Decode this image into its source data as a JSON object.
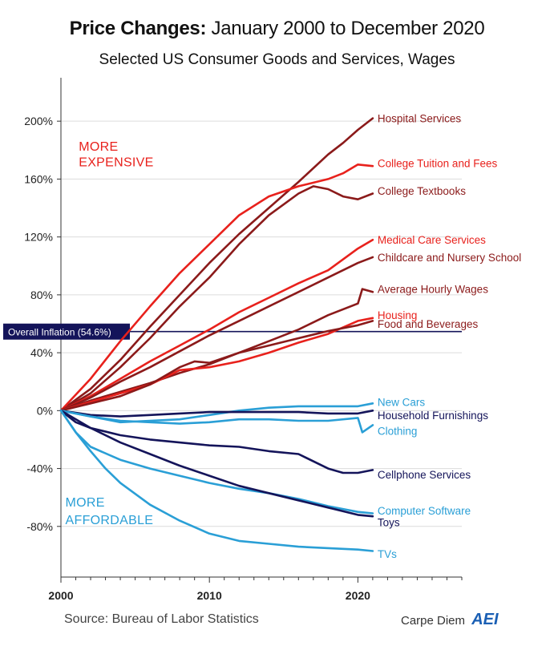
{
  "chart_data": {
    "type": "line",
    "title_bold": "Price Changes:",
    "title_rest": "January 2000 to December 2020",
    "subtitle": "Selected US Consumer Goods and Services, Wages",
    "xlim": [
      2000,
      2027
    ],
    "ylim": [
      -115,
      230
    ],
    "x_ticks": [
      2000,
      2010,
      2020
    ],
    "y_ticks": [
      {
        "value": 200,
        "label": "200%"
      },
      {
        "value": 160,
        "label": "160%"
      },
      {
        "value": 120,
        "label": "120%"
      },
      {
        "value": 80,
        "label": "80%"
      },
      {
        "value": 40,
        "label": "40%"
      },
      {
        "value": 0,
        "label": "0%"
      },
      {
        "value": -40,
        "label": "-40%"
      },
      {
        "value": -80,
        "label": "-80%"
      }
    ],
    "grid": "horizontal",
    "reference_line": {
      "label": "Overall Inflation (54.6%)",
      "value": 54.6,
      "color": "#14145a"
    },
    "annotations": [
      {
        "text": "MORE",
        "x": 2001.2,
        "y": 183,
        "color": "#e8211c"
      },
      {
        "text": "EXPENSIVE",
        "x": 2001.2,
        "y": 172,
        "color": "#e8211c"
      },
      {
        "text": "MORE",
        "x": 2000.3,
        "y": -63,
        "color": "#2a9fd6"
      },
      {
        "text": "AFFORDABLE",
        "x": 2000.3,
        "y": -75,
        "color": "#2a9fd6"
      }
    ],
    "series": [
      {
        "name": "Hospital Services",
        "color": "#8b1a1a",
        "label_y": 202,
        "x": [
          2000,
          2002,
          2004,
          2006,
          2008,
          2010,
          2012,
          2014,
          2016,
          2018,
          2019,
          2020,
          2021
        ],
        "y": [
          0,
          15,
          35,
          58,
          80,
          102,
          122,
          140,
          158,
          177,
          185,
          194,
          202
        ]
      },
      {
        "name": "College Tuition and Fees",
        "color": "#e8211c",
        "label_y": 171,
        "x": [
          2000,
          2002,
          2004,
          2006,
          2008,
          2010,
          2012,
          2014,
          2016,
          2018,
          2019,
          2020,
          2021
        ],
        "y": [
          0,
          22,
          48,
          72,
          95,
          115,
          135,
          148,
          155,
          160,
          164,
          170,
          169
        ]
      },
      {
        "name": "College Textbooks",
        "color": "#8b1a1a",
        "label_y": 152,
        "x": [
          2000,
          2002,
          2004,
          2006,
          2008,
          2010,
          2012,
          2014,
          2016,
          2017,
          2018,
          2019,
          2020,
          2021
        ],
        "y": [
          0,
          12,
          30,
          50,
          72,
          92,
          115,
          135,
          150,
          155,
          153,
          148,
          146,
          150
        ]
      },
      {
        "name": "Medical Care Services",
        "color": "#e8211c",
        "label_y": 118,
        "x": [
          2000,
          2002,
          2004,
          2006,
          2008,
          2010,
          2012,
          2014,
          2016,
          2018,
          2020,
          2021
        ],
        "y": [
          0,
          10,
          22,
          34,
          45,
          56,
          68,
          78,
          88,
          97,
          112,
          118
        ]
      },
      {
        "name": "Childcare and Nursery School",
        "color": "#8b1a1a",
        "label_y": 106,
        "x": [
          2000,
          2002,
          2004,
          2006,
          2008,
          2010,
          2012,
          2014,
          2016,
          2018,
          2020,
          2021
        ],
        "y": [
          0,
          9,
          20,
          30,
          41,
          52,
          62,
          72,
          82,
          92,
          102,
          106
        ]
      },
      {
        "name": "Average Hourly Wages",
        "color": "#8b1a1a",
        "label_y": 84,
        "x": [
          2000,
          2002,
          2004,
          2006,
          2008,
          2010,
          2012,
          2014,
          2016,
          2018,
          2020,
          2020.3,
          2021
        ],
        "y": [
          0,
          7,
          13,
          19,
          26,
          32,
          40,
          48,
          56,
          66,
          74,
          84,
          82
        ]
      },
      {
        "name": "Housing",
        "color": "#e8211c",
        "label_y": 66,
        "x": [
          2000,
          2002,
          2004,
          2006,
          2008,
          2010,
          2012,
          2014,
          2016,
          2018,
          2020,
          2021
        ],
        "y": [
          0,
          6,
          12,
          18,
          28,
          30,
          34,
          40,
          47,
          53,
          62,
          64
        ]
      },
      {
        "name": "Food and Beverages",
        "color": "#8b1a1a",
        "label_y": 60,
        "x": [
          2000,
          2002,
          2004,
          2006,
          2008,
          2009,
          2010,
          2012,
          2014,
          2016,
          2018,
          2020,
          2021
        ],
        "y": [
          0,
          5,
          10,
          18,
          30,
          34,
          33,
          40,
          45,
          50,
          55,
          59,
          62
        ]
      },
      {
        "name": "New Cars",
        "color": "#2a9fd6",
        "label_y": 6,
        "x": [
          2000,
          2002,
          2004,
          2006,
          2008,
          2010,
          2012,
          2014,
          2016,
          2018,
          2020,
          2021
        ],
        "y": [
          0,
          -4,
          -8,
          -7,
          -6,
          -3,
          0,
          2,
          3,
          3,
          3,
          5
        ]
      },
      {
        "name": "Household Furnishings",
        "color": "#14145a",
        "label_y": -3,
        "x": [
          2000,
          2002,
          2004,
          2006,
          2008,
          2010,
          2012,
          2014,
          2016,
          2018,
          2020,
          2021
        ],
        "y": [
          0,
          -3,
          -4,
          -3,
          -2,
          -1,
          -1,
          -1,
          -1,
          -2,
          -2,
          0
        ]
      },
      {
        "name": "Clothing",
        "color": "#2a9fd6",
        "label_y": -14,
        "x": [
          2000,
          2002,
          2004,
          2006,
          2008,
          2010,
          2012,
          2014,
          2016,
          2018,
          2020,
          2020.3,
          2021
        ],
        "y": [
          0,
          -4,
          -7,
          -8,
          -9,
          -8,
          -6,
          -6,
          -7,
          -7,
          -5,
          -15,
          -10
        ]
      },
      {
        "name": "Cellphone Services",
        "color": "#14145a",
        "label_y": -44,
        "x": [
          2000,
          2001,
          2002,
          2004,
          2006,
          2008,
          2010,
          2012,
          2014,
          2016,
          2018,
          2019,
          2020,
          2021
        ],
        "y": [
          0,
          -8,
          -12,
          -17,
          -20,
          -22,
          -24,
          -25,
          -28,
          -30,
          -40,
          -43,
          -43,
          -41
        ]
      },
      {
        "name": "Computer Software",
        "color": "#2a9fd6",
        "label_y": -69,
        "x": [
          2000,
          2001,
          2002,
          2004,
          2006,
          2008,
          2010,
          2012,
          2014,
          2016,
          2018,
          2020,
          2021
        ],
        "y": [
          0,
          -15,
          -25,
          -34,
          -40,
          -45,
          -50,
          -54,
          -57,
          -61,
          -66,
          -70,
          -71
        ]
      },
      {
        "name": "Toys",
        "color": "#14145a",
        "label_y": -77,
        "x": [
          2000,
          2002,
          2004,
          2006,
          2008,
          2010,
          2012,
          2014,
          2016,
          2018,
          2020,
          2021
        ],
        "y": [
          0,
          -12,
          -22,
          -30,
          -38,
          -45,
          -52,
          -57,
          -62,
          -67,
          -72,
          -73
        ]
      },
      {
        "name": "TVs",
        "color": "#2a9fd6",
        "label_y": -99,
        "x": [
          2000,
          2001,
          2002,
          2003,
          2004,
          2006,
          2008,
          2010,
          2012,
          2014,
          2016,
          2018,
          2020,
          2021
        ],
        "y": [
          0,
          -15,
          -28,
          -40,
          -50,
          -65,
          -76,
          -85,
          -90,
          -92,
          -94,
          -95,
          -96,
          -97
        ]
      }
    ]
  },
  "footer": {
    "source": "Source: Bureau of Labor Statistics",
    "brand": "Carpe Diem",
    "logo": "AEI"
  }
}
